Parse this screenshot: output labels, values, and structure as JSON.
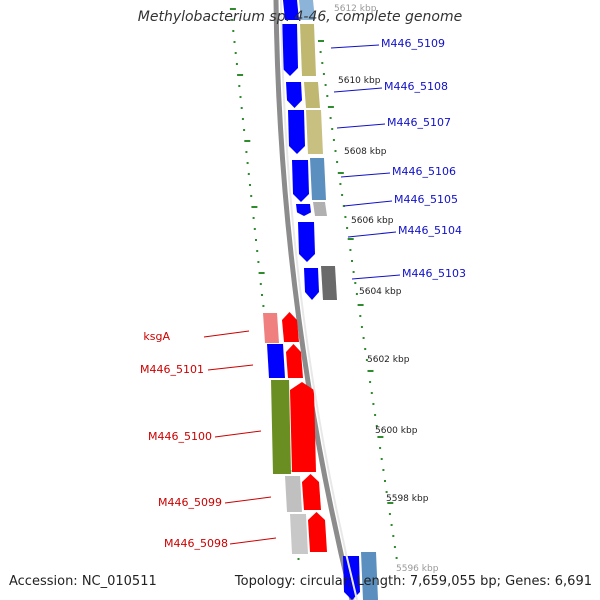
{
  "title": "Methylobacterium sp. 4-46, complete genome",
  "accession_text": "Accession: NC_010511",
  "summary_text": "Topology: circular; Length: 7,659,055 bp; Genes: 6,691",
  "colors": {
    "plus_strand": "#0000ff",
    "minus_strand": "#ff0000",
    "plus_label": "#1010c8",
    "minus_label": "#cc0000",
    "backbone": "#8c8c8c",
    "ruler_dots": "#2e8b2e"
  },
  "kbp_labels": [
    "5612 kbp",
    "5610 kbp",
    "5608 kbp",
    "5606 kbp",
    "5604 kbp",
    "5602 kbp",
    "5600 kbp",
    "5598 kbp",
    "5596 kbp"
  ],
  "plus_genes": [
    {
      "name": "M446_5109"
    },
    {
      "name": "M446_5108"
    },
    {
      "name": "M446_5107"
    },
    {
      "name": "M446_5106"
    },
    {
      "name": "M446_5105"
    },
    {
      "name": "M446_5104"
    },
    {
      "name": "M446_5103"
    }
  ],
  "minus_genes": [
    {
      "name": "ksgA"
    },
    {
      "name": "M446_5101"
    },
    {
      "name": "M446_5100"
    },
    {
      "name": "M446_5099"
    },
    {
      "name": "M446_5098"
    }
  ]
}
